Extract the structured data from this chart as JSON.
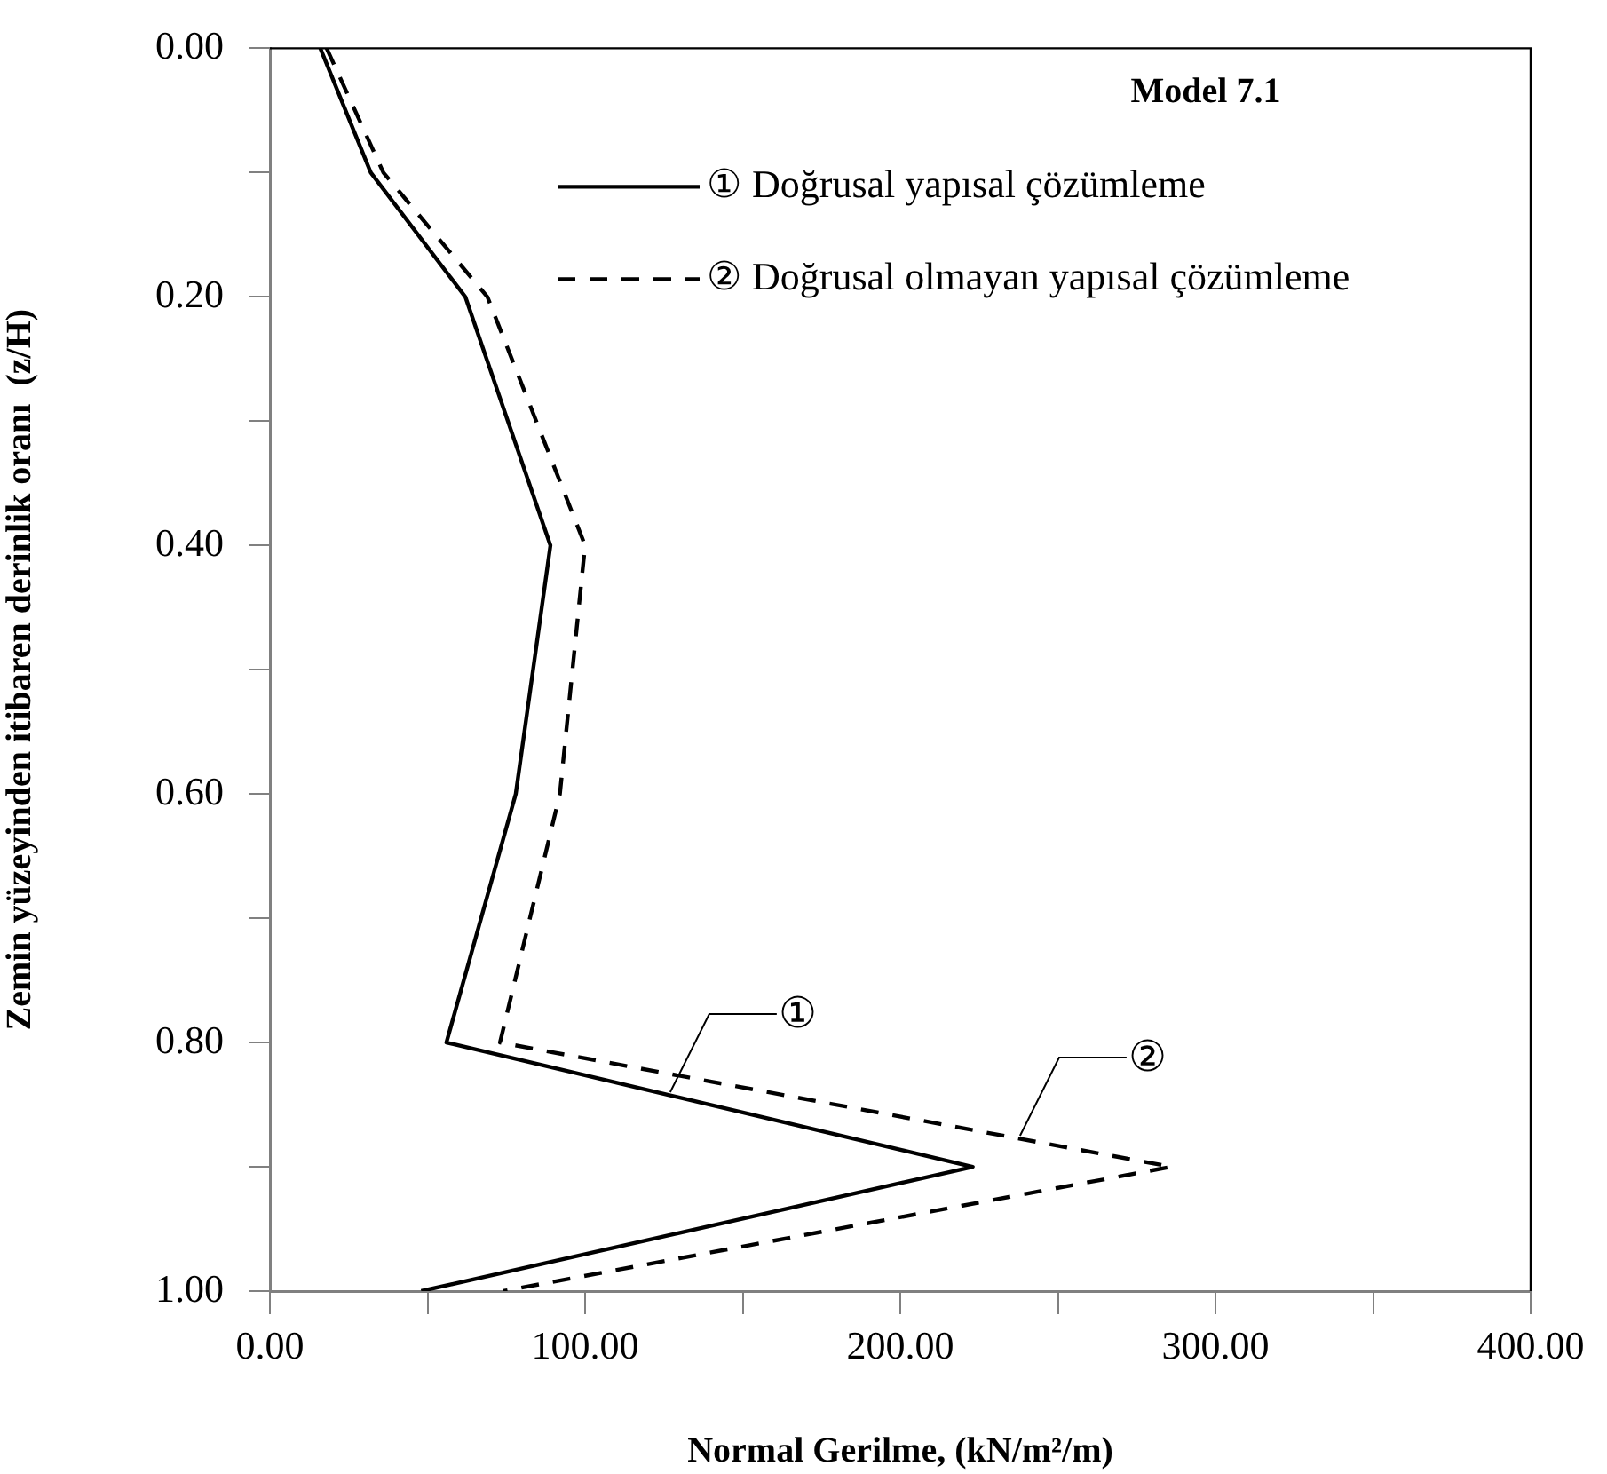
{
  "chart_data": {
    "type": "line",
    "xlabel": "Normal Gerilme, (kN/m²/m)",
    "ylabel": "Zemin yüzeyinden itibaren derinlik oranı  (z/H)",
    "legend_title": "Model 7.1",
    "legend": "top right",
    "grid": false,
    "marker": "none",
    "xlim": [
      0,
      400
    ],
    "xticks": [
      {
        "value": 0,
        "label": "0.00"
      },
      {
        "value": 50,
        "label": null
      },
      {
        "value": 100,
        "label": "100.00"
      },
      {
        "value": 150,
        "label": null
      },
      {
        "value": 200,
        "label": "200.00"
      },
      {
        "value": 250,
        "label": null
      },
      {
        "value": 300,
        "label": "300.00"
      },
      {
        "value": 350,
        "label": null
      },
      {
        "value": 400,
        "label": "400.00"
      }
    ],
    "ylim": [
      1,
      0
    ],
    "yticks": [
      {
        "value": 0,
        "label": "0.00"
      },
      {
        "value": 0.1,
        "label": null
      },
      {
        "value": 0.2,
        "label": "0.20"
      },
      {
        "value": 0.3,
        "label": null
      },
      {
        "value": 0.4,
        "label": "0.40"
      },
      {
        "value": 0.5,
        "label": null
      },
      {
        "value": 0.6,
        "label": "0.60"
      },
      {
        "value": 0.7,
        "label": null
      },
      {
        "value": 0.8,
        "label": "0.80"
      },
      {
        "value": 0.9,
        "label": null
      },
      {
        "value": 1,
        "label": "1.00"
      }
    ],
    "series": [
      {
        "name": "① Doğrusal yapısal çözümleme",
        "color": "#000000",
        "line_style": "solid",
        "x": [
          16,
          32,
          62,
          89,
          78,
          56,
          223,
          48
        ],
        "values": [
          0,
          0.1,
          0.2,
          0.4,
          0.6,
          0.8,
          0.9,
          1
        ]
      },
      {
        "name": "② Doğrusal olmayan yapısal çözümleme",
        "color": "#000000",
        "line_style": "dashed",
        "x": [
          18,
          36,
          69,
          100,
          92,
          73,
          286,
          74
        ],
        "values": [
          0,
          0.1,
          0.2,
          0.4,
          0.6,
          0.8,
          0.9,
          1
        ]
      }
    ],
    "annotations": [
      {
        "text": "①",
        "x": 127,
        "y": 0.84
      },
      {
        "text": "②",
        "x": 238,
        "y": 0.875
      }
    ]
  }
}
